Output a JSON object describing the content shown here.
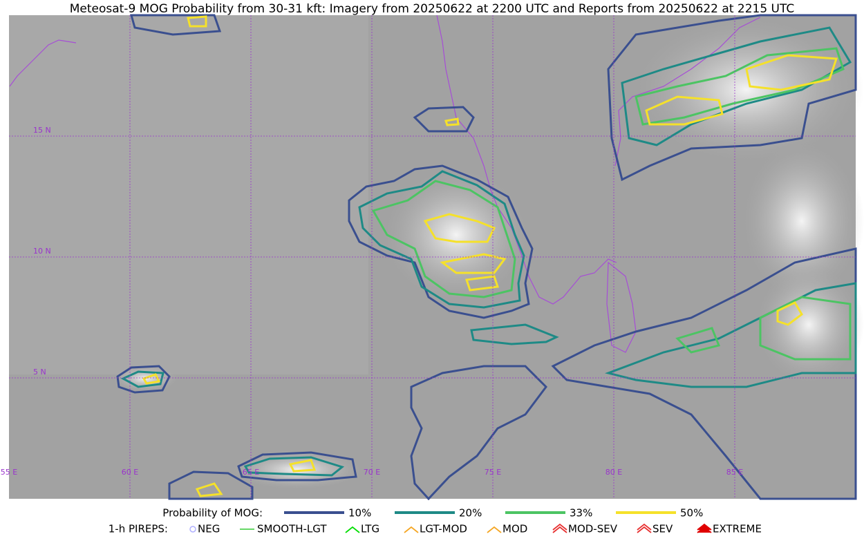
{
  "title": "Meteosat-9 MOG Probability from 30-31 kft: Imagery from 20250622 at 2200 UTC and Reports from 20250622 at 2215 UTC",
  "latitude_labels": [
    "15 N",
    "10 N",
    "5 N"
  ],
  "longitude_labels": [
    "55 E",
    "60 E",
    "65 E",
    "70 E",
    "75 E",
    "80 E",
    "85 E"
  ],
  "legend": {
    "probability": {
      "label": "Probability of MOG:",
      "items": [
        {
          "label": "10%",
          "color": "#3a4f8f"
        },
        {
          "label": "20%",
          "color": "#1e8a86"
        },
        {
          "label": "33%",
          "color": "#4cc463"
        },
        {
          "label": "50%",
          "color": "#f5e12a"
        }
      ]
    },
    "pireps": {
      "label": "1-h PIREPS:",
      "items": [
        {
          "label": "NEG",
          "color": "#b0b0ff"
        },
        {
          "label": "SMOOTH-LGT",
          "color": "#33cc33"
        },
        {
          "label": "LTG",
          "color": "#00dd00"
        },
        {
          "label": "LGT-MOD",
          "color": "#f5a623"
        },
        {
          "label": "MOD",
          "color": "#f5a623"
        },
        {
          "label": "MOD-SEV",
          "color": "#e83030"
        },
        {
          "label": "SEV",
          "color": "#e83030"
        },
        {
          "label": "EXTREME",
          "color": "#e00000"
        }
      ]
    }
  }
}
